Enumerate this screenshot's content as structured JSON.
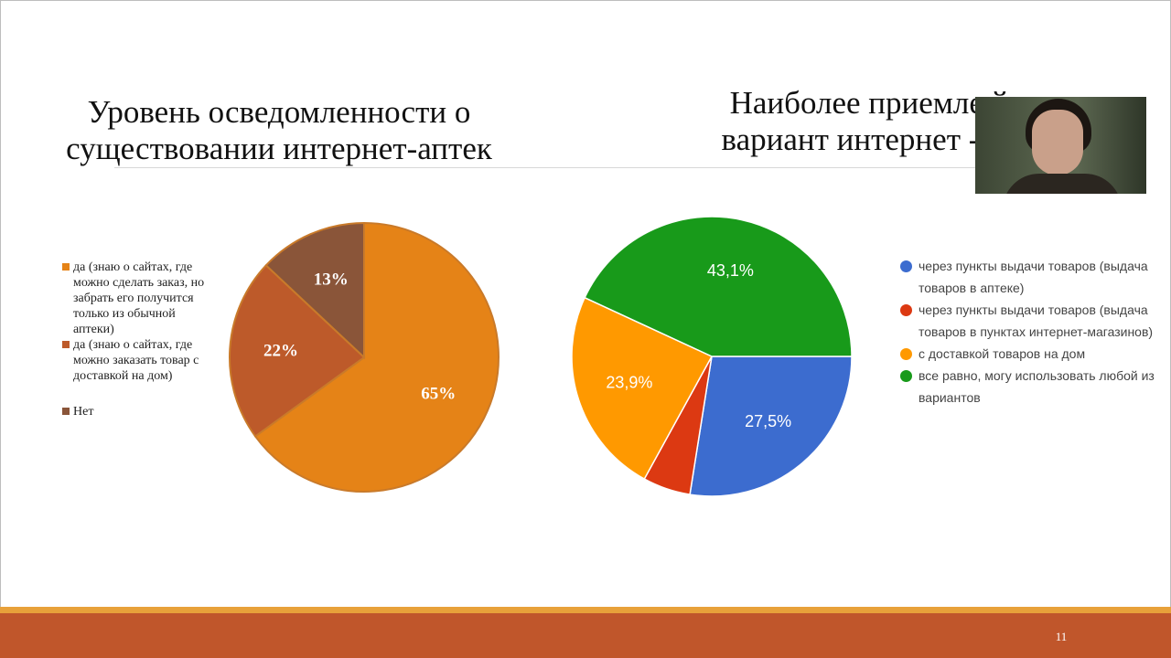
{
  "slide": {
    "page_number": "11",
    "colors": {
      "footer": "#c0562b",
      "footer_accent": "#e8a13a"
    }
  },
  "webcam": {
    "icon": "webcam-person-icon"
  },
  "chart_data": [
    {
      "type": "pie",
      "title": "Уровень осведомленности о\nсуществовании интернет-аптек",
      "slices": [
        {
          "label": "да (знаю о сайтах, где можно сделать заказ, но забрать его получится только из обычной аптеки)",
          "value": 65,
          "display": "65%",
          "color": "#e58317"
        },
        {
          "label": "да (знаю о сайтах, где можно заказать товар с доставкой на дом)",
          "value": 22,
          "display": "22%",
          "color": "#bd5a2a"
        },
        {
          "label": "Нет",
          "value": 13,
          "display": "13%",
          "color": "#8a5539"
        }
      ],
      "legend_position": "left"
    },
    {
      "type": "pie",
      "title": "Наиболее приемле    й\nвариант интернет - то",
      "slices": [
        {
          "label": "через пункты выдачи товаров (выдача товаров в аптеке)",
          "value": 27.5,
          "display": "27,5%",
          "color": "#3c6ccf"
        },
        {
          "label": "через пункты выдачи товаров (выдача товаров в пунктах интернет-магазинов)",
          "value": 5.5,
          "display": "",
          "color": "#dc3912"
        },
        {
          "label": "с доставкой товаров на дом",
          "value": 23.9,
          "display": "23,9%",
          "color": "#ff9900"
        },
        {
          "label": "все равно, могу использовать любой из вариантов",
          "value": 43.1,
          "display": "43,1%",
          "color": "#189a1a"
        }
      ],
      "legend_position": "right"
    }
  ]
}
